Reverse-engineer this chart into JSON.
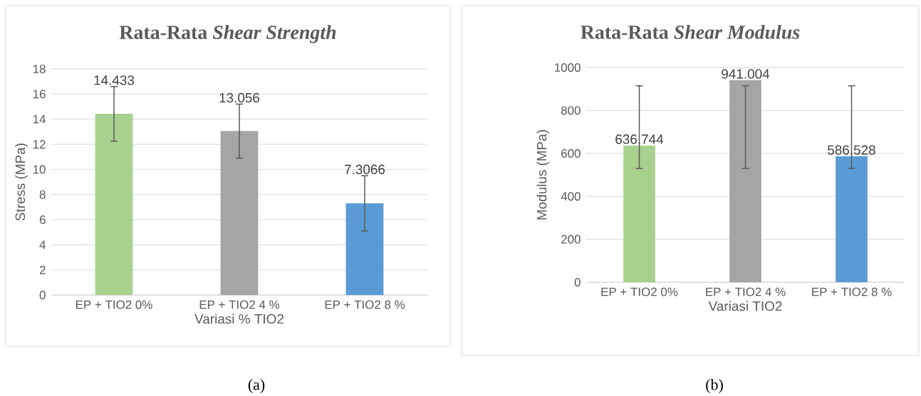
{
  "chart_data": [
    {
      "type": "bar",
      "title": "Rata-Rata *Shear Strength*",
      "xlabel": "Variasi % TIO2",
      "ylabel": "Stress (MPa)",
      "categories": [
        "EP + TIO2 0%",
        "EP + TIO2 4 %",
        "EP + TIO2 8 %"
      ],
      "values": [
        14.433,
        13.056,
        7.3066
      ],
      "colors": [
        "#a9d18e",
        "#a5a5a5",
        "#5b9bd5"
      ],
      "errors": [
        [
          12.25,
          16.6
        ],
        [
          10.9,
          15.2
        ],
        [
          5.1,
          9.5
        ]
      ],
      "ylim": [
        0,
        18
      ],
      "yticks": [
        0,
        2,
        4,
        6,
        8,
        10,
        12,
        14,
        16,
        18
      ],
      "grid": "y",
      "data_labels": true,
      "annotations": [
        "(a)"
      ]
    },
    {
      "type": "bar",
      "title": "Rata-Rata *Shear Modulus*",
      "xlabel": "Variasi TIO2",
      "ylabel": "Modulus (MPa)",
      "categories": [
        "EP + TIO2 0%",
        "EP + TIO2 4 %",
        "EP + TIO2 8 %"
      ],
      "values": [
        636.744,
        941.004,
        586.528
      ],
      "colors": [
        "#a9d18e",
        "#a5a5a5",
        "#5b9bd5"
      ],
      "errors": [
        [
          530,
          915
        ],
        [
          530,
          915
        ],
        [
          530,
          915
        ]
      ],
      "ylim": [
        0,
        1000
      ],
      "yticks": [
        0,
        200,
        400,
        600,
        800,
        1000
      ],
      "grid": "y",
      "data_labels": true,
      "annotations": [
        "(b)"
      ]
    }
  ]
}
